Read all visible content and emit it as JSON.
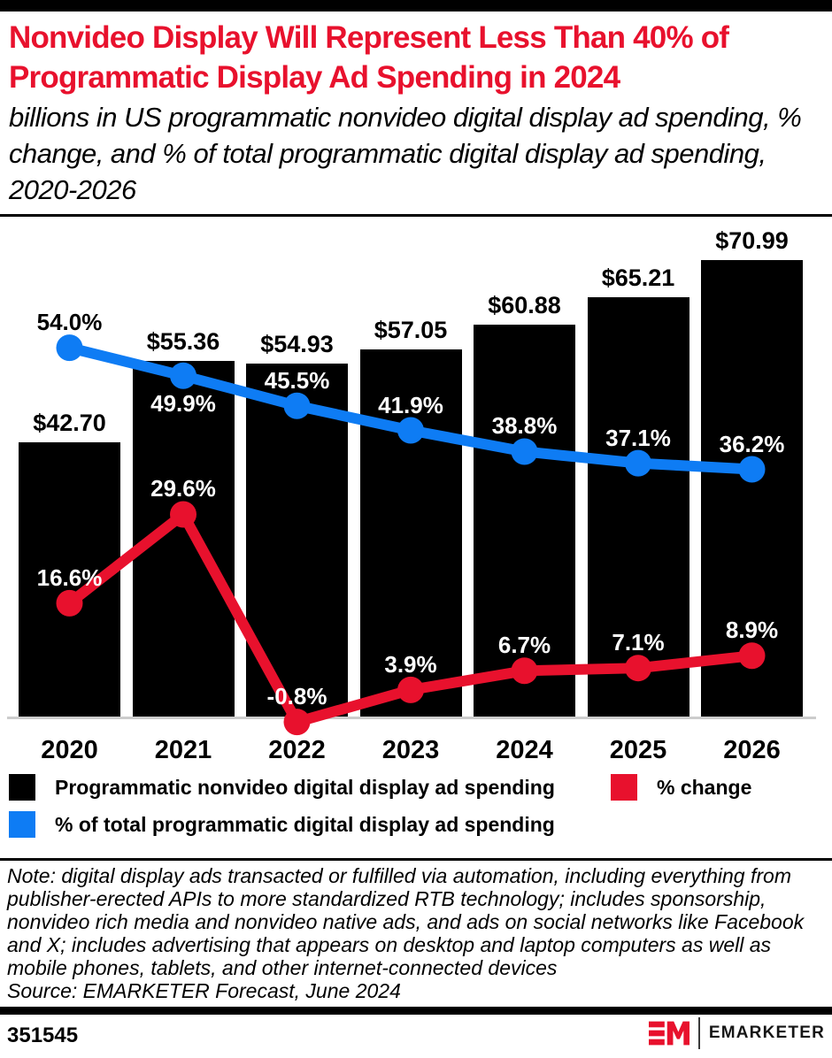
{
  "page": {
    "title": "Nonvideo Display Will Represent Less Than 40% of Programmatic Display Ad Spending in 2024",
    "subtitle": "billions in US programmatic nonvideo digital display ad spending, % change, and % of total programmatic digital display ad spending, 2020-2026",
    "note": "Note: digital display ads transacted or fulfilled via automation, including everything from publisher-erected APIs to more standardized RTB technology; includes sponsorship, nonvideo rich media and nonvideo native ads, and ads on social networks like Facebook and X; includes advertising that appears on desktop and laptop computers as well as mobile phones, tablets, and other internet-connected devices",
    "source": "Source: EMARKETER Forecast, June 2024",
    "chart_id": "351545",
    "brand": {
      "name": "EMARKETER"
    }
  },
  "colors": {
    "red": "#e8112d",
    "blue": "#0e7cf4",
    "black": "#000000",
    "axis_line": "#cccccc"
  },
  "legend": [
    {
      "label": "Programmatic nonvideo digital display ad spending",
      "color": "#000000"
    },
    {
      "label": "% change",
      "color": "#e8112d"
    },
    {
      "label": "% of total programmatic digital display ad spending",
      "color": "#0e7cf4"
    }
  ],
  "chart_data": {
    "type": "bar+line",
    "title": "Nonvideo Display Will Represent Less Than 40% of Programmatic Display Ad Spending in 2024",
    "categories": [
      "2020",
      "2021",
      "2022",
      "2023",
      "2024",
      "2025",
      "2026"
    ],
    "grid": "off",
    "y_axis": "hidden, bars in $billions from 0; lines in % from 0 on secondary scale",
    "series": [
      {
        "name": "Programmatic nonvideo digital display ad spending",
        "type": "bar",
        "unit": "billions USD",
        "color": "#000000",
        "values": [
          42.7,
          55.36,
          54.93,
          57.05,
          60.88,
          65.21,
          70.99
        ],
        "labels": [
          "$42.70",
          "$55.36",
          "$54.93",
          "$57.05",
          "$60.88",
          "$65.21",
          "$70.99"
        ]
      },
      {
        "name": "% of total programmatic digital display ad spending",
        "type": "line",
        "unit": "%",
        "color": "#0e7cf4",
        "values": [
          54.0,
          49.9,
          45.5,
          41.9,
          38.8,
          37.1,
          36.2
        ],
        "labels": [
          "54.0%",
          "49.9%",
          "45.5%",
          "41.9%",
          "38.8%",
          "37.1%",
          "36.2%"
        ],
        "label_positions": [
          "above",
          "below",
          "above",
          "above",
          "above",
          "above",
          "above"
        ],
        "label_colors": [
          "#000000",
          "#ffffff",
          "#ffffff",
          "#ffffff",
          "#ffffff",
          "#ffffff",
          "#ffffff"
        ]
      },
      {
        "name": "% change",
        "type": "line",
        "unit": "%",
        "color": "#e8112d",
        "values": [
          16.6,
          29.6,
          -0.8,
          3.9,
          6.7,
          7.1,
          8.9
        ],
        "labels": [
          "16.6%",
          "29.6%",
          "-0.8%",
          "3.9%",
          "6.7%",
          "7.1%",
          "8.9%"
        ],
        "label_positions": [
          "above",
          "above",
          "above",
          "above",
          "above",
          "above",
          "above"
        ],
        "label_colors": [
          "#ffffff",
          "#ffffff",
          "#ffffff",
          "#ffffff",
          "#ffffff",
          "#ffffff",
          "#ffffff"
        ]
      }
    ]
  }
}
